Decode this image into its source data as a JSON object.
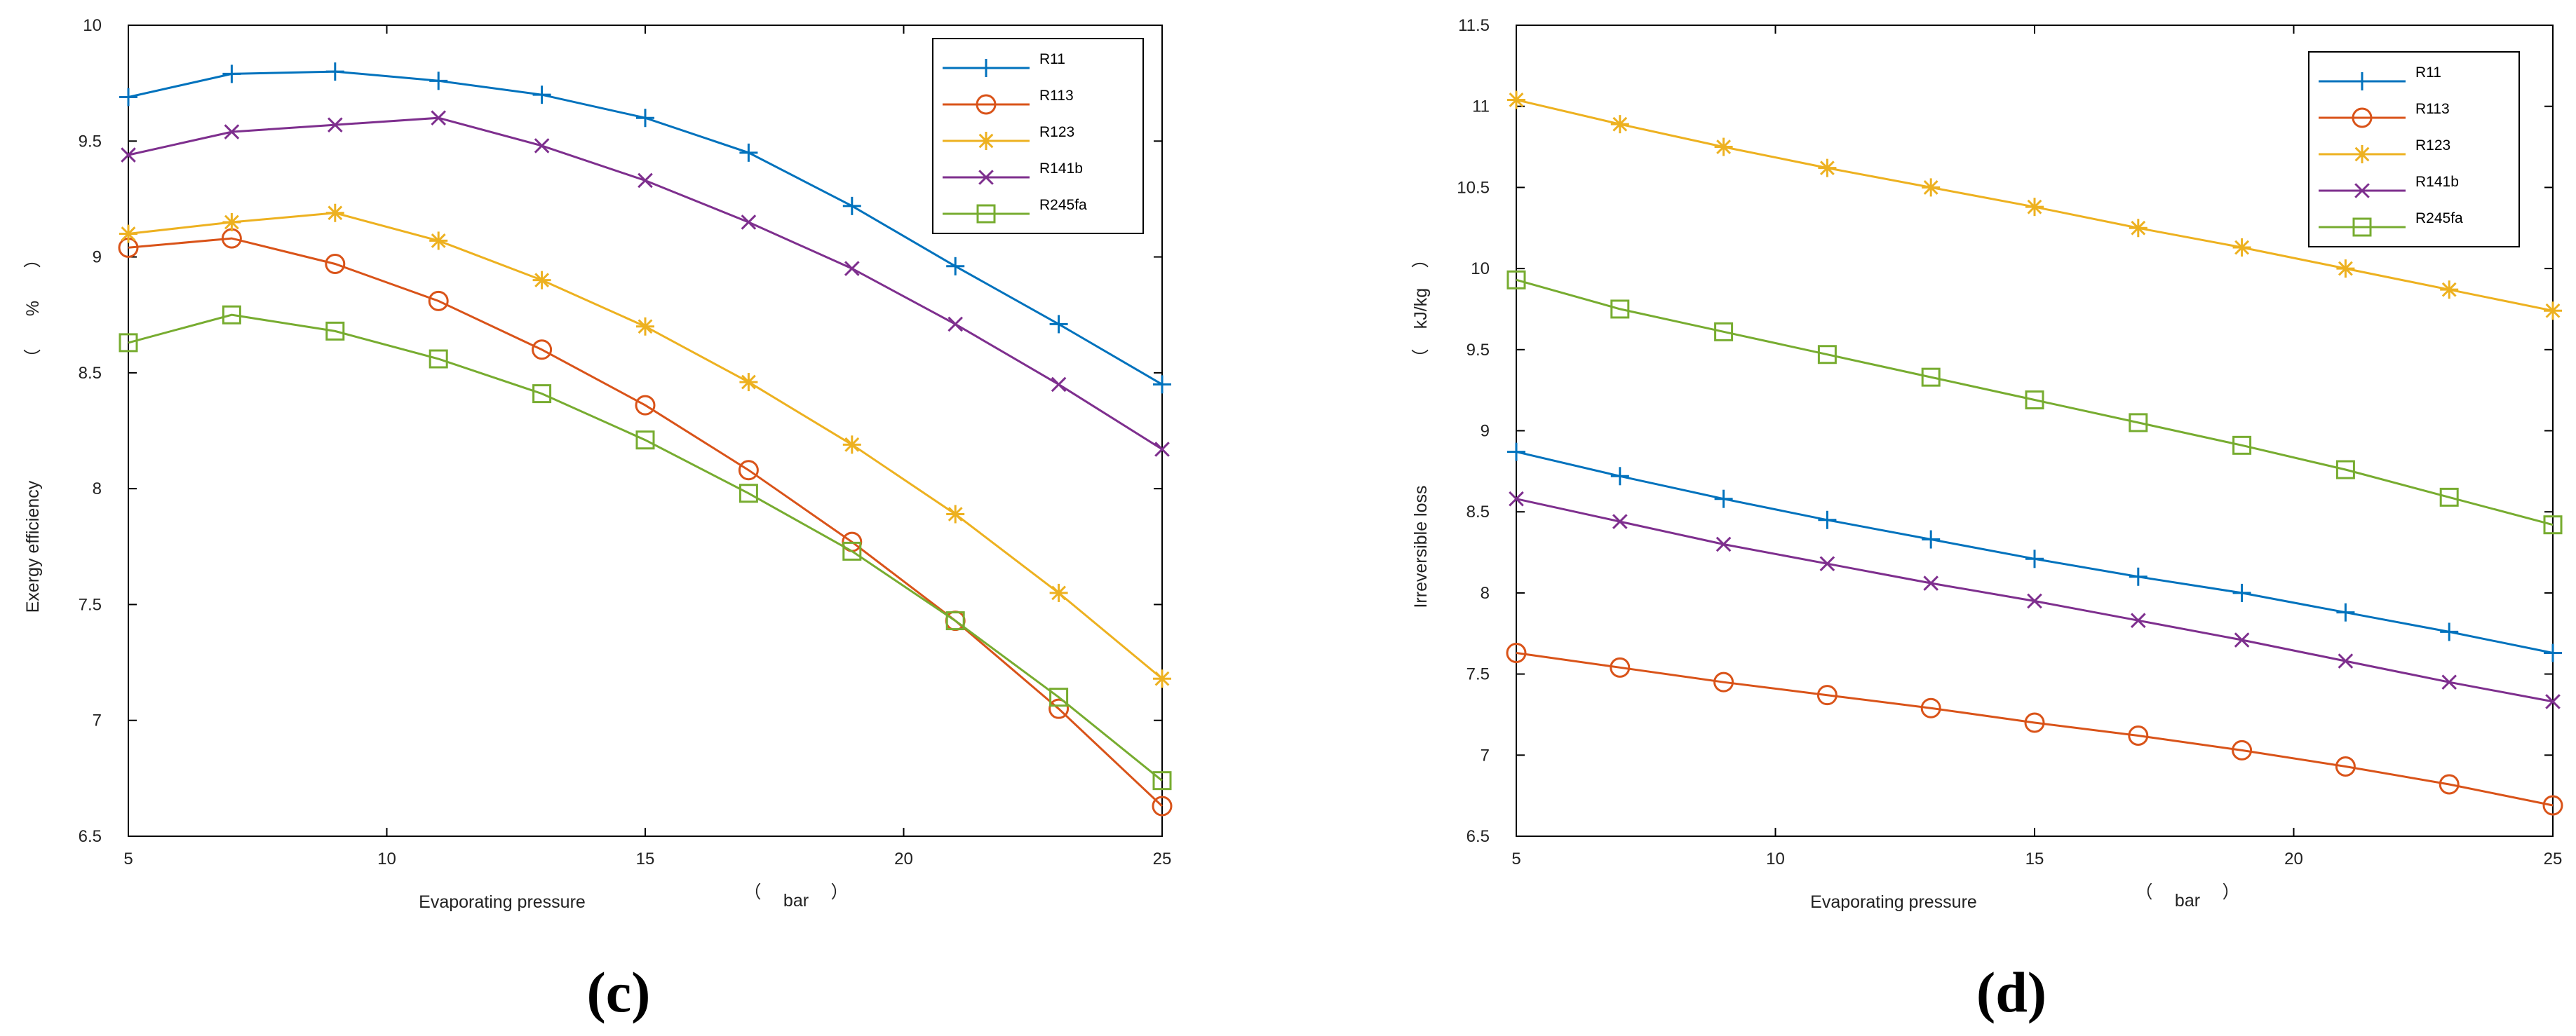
{
  "chart_data": [
    {
      "type": "line",
      "panel_label": "(c)",
      "xlabel": "Evaporating pressure",
      "xunit_open": "（",
      "xunit": "bar",
      "xunit_close": "）",
      "ylabel": "Exergy efficiency",
      "yunit_open": "（",
      "yunit": "%",
      "yunit_close": "）",
      "xlim": [
        5,
        25
      ],
      "ylim": [
        6.5,
        10
      ],
      "xticks": [
        5,
        10,
        15,
        20,
        25
      ],
      "xtick_labels": [
        "5",
        "10",
        "15",
        "20",
        "25"
      ],
      "yticks": [
        6.5,
        7,
        7.5,
        8,
        8.5,
        9,
        9.5,
        10
      ],
      "ytick_labels": [
        "6.5",
        "7",
        "7.5",
        "8",
        "8.5",
        "9",
        "9.5",
        "10"
      ],
      "legend_position": "top-right",
      "x": [
        5,
        7,
        9,
        11,
        13,
        15,
        17,
        19,
        21,
        23,
        25
      ],
      "series": [
        {
          "name": "R11",
          "color": "#0072BD",
          "marker": "plus",
          "values": [
            9.69,
            9.79,
            9.8,
            9.76,
            9.7,
            9.6,
            9.45,
            9.22,
            8.96,
            8.71,
            8.45
          ]
        },
        {
          "name": "R113",
          "color": "#D95319",
          "marker": "circle",
          "values": [
            9.04,
            9.08,
            8.97,
            8.81,
            8.6,
            8.36,
            8.08,
            7.77,
            7.43,
            7.05,
            6.63
          ]
        },
        {
          "name": "R123",
          "color": "#EDB120",
          "marker": "asterisk",
          "values": [
            9.1,
            9.15,
            9.19,
            9.07,
            8.9,
            8.7,
            8.46,
            8.19,
            7.89,
            7.55,
            7.18
          ]
        },
        {
          "name": "R141b",
          "color": "#7E2F8E",
          "marker": "x",
          "values": [
            9.44,
            9.54,
            9.57,
            9.6,
            9.48,
            9.33,
            9.15,
            8.95,
            8.71,
            8.45,
            8.17
          ]
        },
        {
          "name": "R245fa",
          "color": "#77AC30",
          "marker": "square",
          "values": [
            8.63,
            8.75,
            8.68,
            8.56,
            8.41,
            8.21,
            7.98,
            7.73,
            7.43,
            7.1,
            6.74
          ]
        }
      ]
    },
    {
      "type": "line",
      "panel_label": "(d)",
      "xlabel": "Evaporating pressure",
      "xunit_open": "（",
      "xunit": "bar",
      "xunit_close": "）",
      "ylabel": "Irreversible loss",
      "yunit_open": "（",
      "yunit": "kJ/kg",
      "yunit_close": "）",
      "xlim": [
        5,
        25
      ],
      "ylim": [
        6.5,
        11.5
      ],
      "xticks": [
        5,
        10,
        15,
        20,
        25
      ],
      "xtick_labels": [
        "5",
        "10",
        "15",
        "20",
        "25"
      ],
      "yticks": [
        6.5,
        7,
        7.5,
        8,
        8.5,
        9,
        9.5,
        10,
        10.5,
        11,
        11.5
      ],
      "ytick_labels": [
        "6.5",
        "7",
        "7.5",
        "8",
        "8.5",
        "9",
        "9.5",
        "10",
        "10.5",
        "11",
        "11.5"
      ],
      "legend_position": "top-right",
      "x": [
        5,
        7,
        9,
        11,
        13,
        15,
        17,
        19,
        21,
        23,
        25
      ],
      "series": [
        {
          "name": "R11",
          "color": "#0072BD",
          "marker": "plus",
          "values": [
            8.87,
            8.72,
            8.58,
            8.45,
            8.33,
            8.21,
            8.1,
            8.0,
            7.88,
            7.76,
            7.63
          ]
        },
        {
          "name": "R113",
          "color": "#D95319",
          "marker": "circle",
          "values": [
            7.63,
            7.54,
            7.45,
            7.37,
            7.29,
            7.2,
            7.12,
            7.03,
            6.93,
            6.82,
            6.69
          ]
        },
        {
          "name": "R123",
          "color": "#EDB120",
          "marker": "asterisk",
          "values": [
            11.04,
            10.89,
            10.75,
            10.62,
            10.5,
            10.38,
            10.25,
            10.13,
            10.0,
            9.87,
            9.74
          ]
        },
        {
          "name": "R141b",
          "color": "#7E2F8E",
          "marker": "x",
          "values": [
            8.58,
            8.44,
            8.3,
            8.18,
            8.06,
            7.95,
            7.83,
            7.71,
            7.58,
            7.45,
            7.33
          ]
        },
        {
          "name": "R245fa",
          "color": "#77AC30",
          "marker": "square",
          "values": [
            9.93,
            9.75,
            9.61,
            9.47,
            9.33,
            9.19,
            9.05,
            8.91,
            8.76,
            8.59,
            8.42
          ]
        }
      ]
    }
  ]
}
